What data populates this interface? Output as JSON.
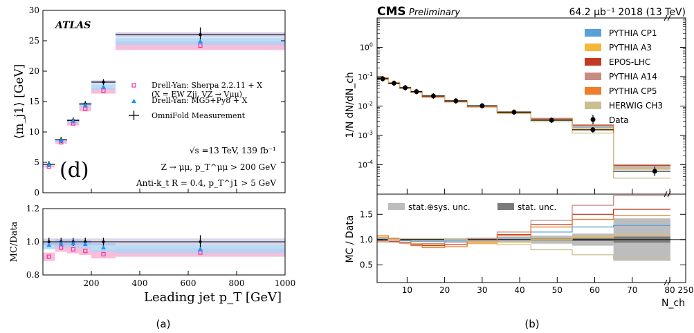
{
  "captions": {
    "a": "(a)",
    "b": "(b)"
  },
  "chart_data": [
    {
      "type": "scatter",
      "panel": "a",
      "experiment_label": "ATLAS",
      "panel_tag": "(d)",
      "xlabel": "Leading jet p_T [GeV]",
      "ylabel_main": "⟨m_j1⟩ [GeV]",
      "ylabel_ratio": "MC/Data",
      "xlim": [
        0,
        1000
      ],
      "ylim_main": [
        0,
        30
      ],
      "ylim_ratio": [
        0.8,
        1.2
      ],
      "x_ticks": [
        "200",
        "400",
        "600",
        "800",
        "1000"
      ],
      "y_ticks_main": [
        "0",
        "5",
        "10",
        "15",
        "20",
        "25",
        "30"
      ],
      "y_ticks_ratio": [
        "0.8",
        "1.0",
        "1.2"
      ],
      "bins": [
        [
          0,
          50
        ],
        [
          50,
          100
        ],
        [
          100,
          150
        ],
        [
          150,
          200
        ],
        [
          200,
          300
        ],
        [
          300,
          1000
        ]
      ],
      "bin_centers": [
        25,
        75,
        125,
        175,
        250,
        650
      ],
      "series": [
        {
          "name": "OmniFold Measurement",
          "values": [
            4.7,
            8.7,
            11.9,
            14.6,
            18.2,
            26.0
          ],
          "ratio": [
            1.0,
            1.0,
            1.0,
            1.0,
            1.0,
            1.0
          ],
          "color": "#000000"
        },
        {
          "name": "Drell-Yan: Sherpa 2.2.11 + X",
          "values": [
            4.3,
            8.3,
            11.4,
            13.8,
            16.8,
            24.2
          ],
          "ratio": [
            0.91,
            0.965,
            0.955,
            0.945,
            0.925,
            0.935
          ],
          "color": "#e8369a"
        },
        {
          "name": "Drell-Yan: MG5+Py8 + X",
          "values": [
            4.6,
            8.6,
            11.8,
            14.4,
            17.4,
            24.9
          ],
          "ratio": [
            0.98,
            0.99,
            0.99,
            0.985,
            0.965,
            0.955
          ],
          "color": "#1e90ff"
        }
      ],
      "legend": [
        {
          "label": "Drell-Yan: Sherpa 2.2.11 + X",
          "sub": "(X = EW Zjj, VZ → Vμμ)"
        },
        {
          "label": "Drell-Yan: MG5+Py8 + X"
        },
        {
          "label": "OmniFold Measurement"
        }
      ],
      "annotations": [
        "√s =13 TeV, 139 fb⁻¹",
        "Z → μμ, p_T^μμ > 200 GeV",
        "Anti-k_t R = 0.4, p_T^j1 > 5 GeV"
      ]
    },
    {
      "type": "line",
      "panel": "b",
      "header_left": "CMS",
      "header_left_sub": "Preliminary",
      "header_right": "64.2 μb⁻¹ 2018 (13 TeV)",
      "ylabel_main": "1/N dN/dN_ch",
      "ylabel_ratio": "MC / Data",
      "xlabel": "N_ch",
      "y_log": true,
      "ylim_main": [
        1e-05,
        10
      ],
      "ylim_ratio": [
        0.15,
        1.9
      ],
      "x_ticks": [
        "10",
        "20",
        "30",
        "40",
        "50",
        "60",
        "70",
        "80",
        "250"
      ],
      "y_ticks_main": [
        "10^0",
        "10^-1",
        "10^-2",
        "10^-3",
        "10^-4"
      ],
      "y_ticks_ratio": [
        "0.5",
        "1.0",
        "1.5"
      ],
      "bin_edges": [
        2,
        5,
        8,
        11,
        14,
        20,
        26,
        34,
        43,
        54,
        65,
        87
      ],
      "data": {
        "name": "Data",
        "x": [
          3.5,
          6.5,
          9.5,
          12.5,
          17,
          23,
          30,
          38.5,
          48.5,
          59.5,
          76
        ],
        "y": [
          0.085,
          0.06,
          0.042,
          0.031,
          0.022,
          0.015,
          0.0102,
          0.0062,
          0.0033,
          0.00155,
          6e-05
        ]
      },
      "series": [
        {
          "name": "PYTHIA CP1",
          "color": "#5aa0d8",
          "values": [
            0.088,
            0.061,
            0.042,
            0.031,
            0.022,
            0.0148,
            0.0098,
            0.006,
            0.0035,
            0.0019,
            7.8e-05
          ],
          "ratio": [
            1.03,
            1.01,
            0.98,
            0.96,
            0.96,
            0.97,
            0.97,
            1.03,
            1.15,
            1.25,
            1.28
          ]
        },
        {
          "name": "PYTHIA A3",
          "color": "#f5b63a",
          "values": [
            0.09,
            0.062,
            0.041,
            0.03,
            0.021,
            0.0143,
            0.0093,
            0.0057,
            0.0033,
            0.0017,
            7e-05
          ],
          "ratio": [
            1.05,
            1.0,
            0.95,
            0.92,
            0.9,
            0.9,
            0.92,
            0.95,
            1.0,
            1.05,
            1.08
          ]
        },
        {
          "name": "EPOS-LHC",
          "color": "#c13a22",
          "values": [
            0.087,
            0.059,
            0.04,
            0.029,
            0.021,
            0.0145,
            0.0098,
            0.0062,
            0.0038,
            0.0022,
            9.5e-05
          ],
          "ratio": [
            0.98,
            0.96,
            0.93,
            0.9,
            0.88,
            0.9,
            0.97,
            1.1,
            1.3,
            1.5,
            1.6
          ]
        },
        {
          "name": "PYTHIA A14",
          "color": "#c58b82",
          "values": [
            0.083,
            0.058,
            0.04,
            0.029,
            0.021,
            0.0147,
            0.01,
            0.0064,
            0.0038,
            0.0023,
            0.0001
          ],
          "ratio": [
            0.97,
            0.95,
            0.93,
            0.91,
            0.92,
            0.95,
            1.02,
            1.15,
            1.38,
            1.68,
            1.87
          ]
        },
        {
          "name": "PYTHIA CP5",
          "color": "#ef7d2c",
          "values": [
            0.092,
            0.063,
            0.042,
            0.03,
            0.02,
            0.0138,
            0.0093,
            0.006,
            0.0037,
            0.0021,
            8.8e-05
          ],
          "ratio": [
            1.08,
            1.02,
            0.95,
            0.88,
            0.84,
            0.86,
            0.94,
            1.08,
            1.25,
            1.4,
            1.48
          ]
        },
        {
          "name": "HERWIG CH3",
          "color": "#cbbf8f",
          "values": [
            0.083,
            0.06,
            0.043,
            0.032,
            0.023,
            0.0152,
            0.0098,
            0.0055,
            0.0029,
            0.0012,
            3.5e-05
          ],
          "ratio": [
            0.96,
            1.0,
            1.02,
            1.02,
            1.02,
            1.0,
            0.97,
            0.9,
            0.8,
            0.7,
            0.62
          ]
        }
      ],
      "unc_labels": [
        "stat.⊕sys. unc.",
        "stat. unc."
      ],
      "unc_total": [
        0.06,
        0.04,
        0.03,
        0.03,
        0.03,
        0.03,
        0.04,
        0.06,
        0.08,
        0.12,
        0.42
      ],
      "unc_stat": [
        0.01,
        0.01,
        0.01,
        0.01,
        0.01,
        0.01,
        0.01,
        0.01,
        0.02,
        0.03,
        0.06
      ]
    }
  ]
}
